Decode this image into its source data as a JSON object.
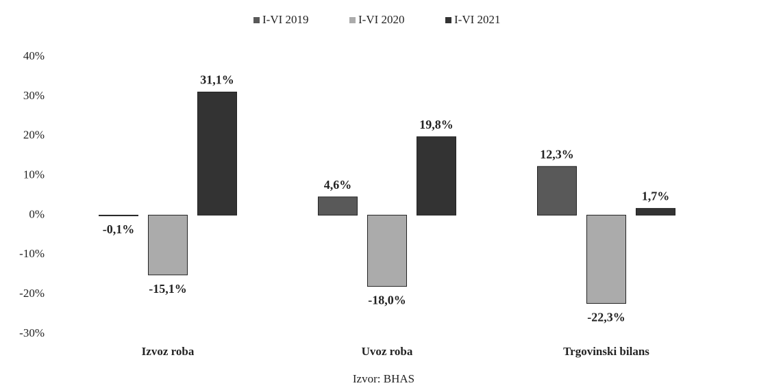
{
  "chart_data": {
    "type": "bar",
    "categories": [
      "Izvoz roba",
      "Uvoz roba",
      "Trgovinski bilans"
    ],
    "series": [
      {
        "name": "I-VI 2019",
        "color": "#595959",
        "values": [
          -0.1,
          4.6,
          12.3
        ],
        "value_labels": [
          "-0,1%",
          "4,6%",
          "12,3%"
        ]
      },
      {
        "name": "I-VI 2020",
        "color": "#ababab",
        "values": [
          -15.1,
          -18.0,
          -22.3
        ],
        "value_labels": [
          "-15,1%",
          "-18,0%",
          "-22,3%"
        ]
      },
      {
        "name": "I-VI 2021",
        "color": "#333333",
        "values": [
          31.1,
          19.8,
          1.7
        ],
        "value_labels": [
          "31,1%",
          "19,8%",
          "1,7%"
        ]
      }
    ],
    "ylim": [
      -30,
      40
    ],
    "yticks": [
      {
        "value": -30,
        "label": "-30%"
      },
      {
        "value": -20,
        "label": "-20%"
      },
      {
        "value": -10,
        "label": "-10%"
      },
      {
        "value": 0,
        "label": "0%"
      },
      {
        "value": 10,
        "label": "10%"
      },
      {
        "value": 20,
        "label": "20%"
      },
      {
        "value": 30,
        "label": "30%"
      },
      {
        "value": 40,
        "label": "40%"
      }
    ],
    "legend": "top",
    "source": "Izvor: BHAS"
  }
}
